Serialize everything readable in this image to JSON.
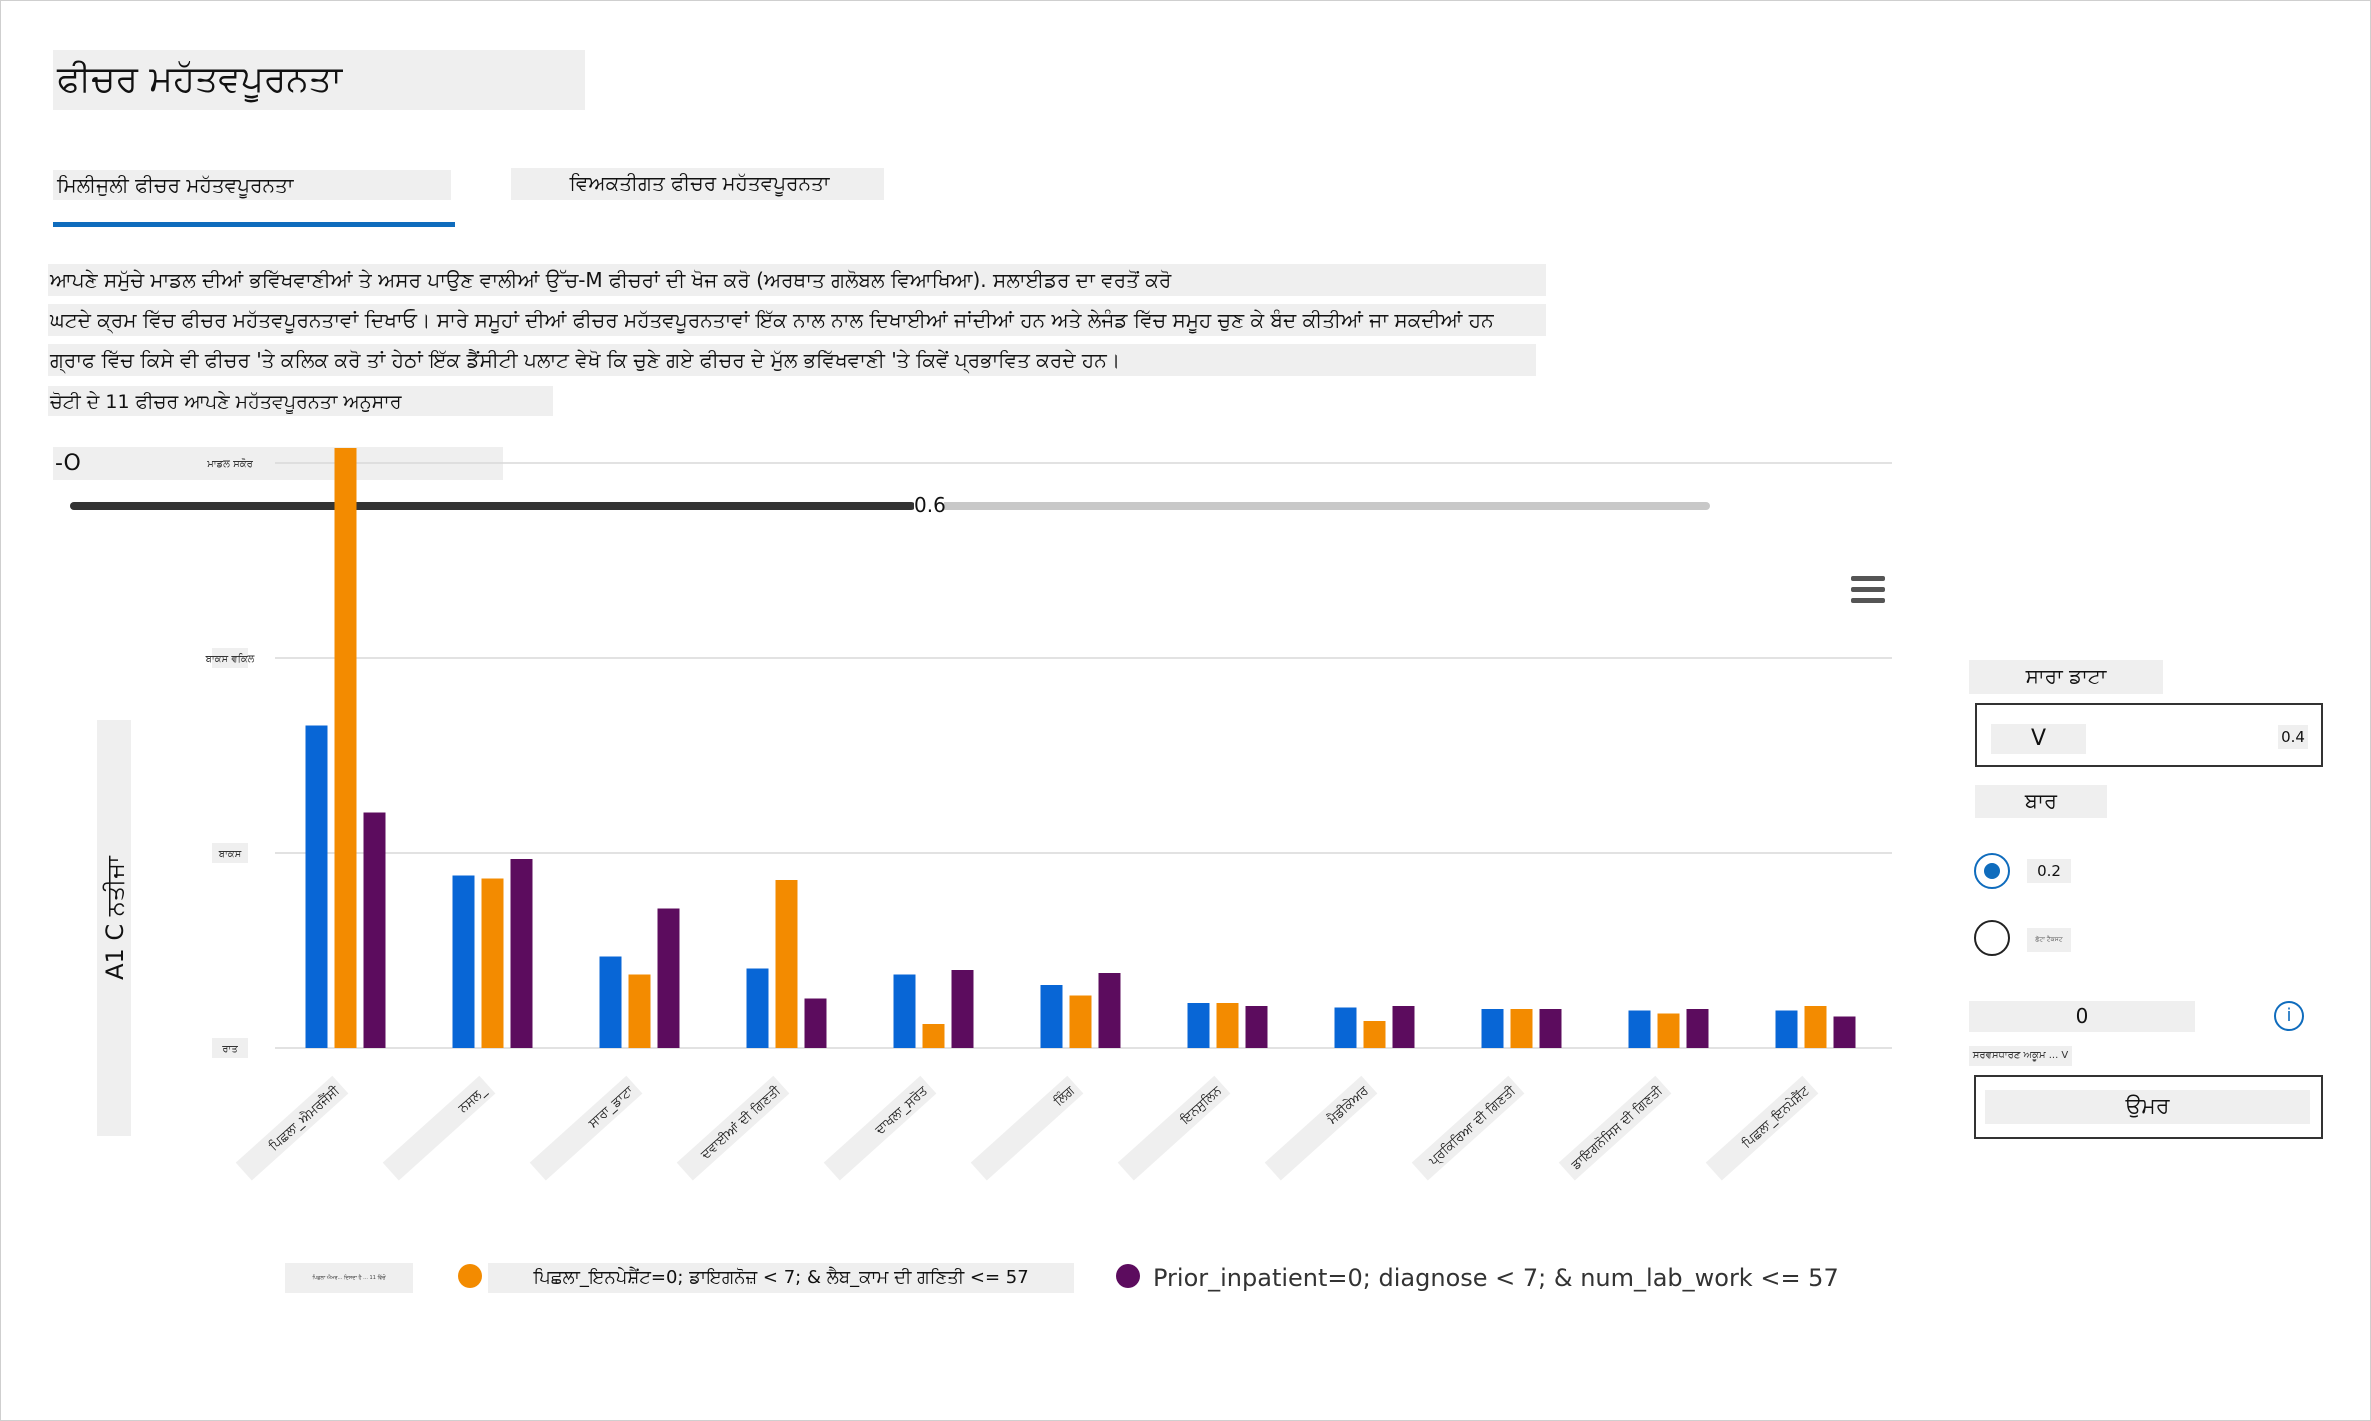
{
  "header": {
    "title": "ਫੀਚਰ ਮਹੱਤਵਪੂਰਨਤਾ"
  },
  "tabs": [
    {
      "label": "ਮਿਲੀਜੁਲੀ ਫੀਚਰ ਮਹੱਤਵਪੂਰਨਤਾ",
      "active": true
    },
    {
      "label": "ਵਿਅਕਤੀਗਤ ਫੀਚਰ ਮਹੱਤਵਪੂਰਨਤਾ",
      "active": false
    }
  ],
  "description": [
    "ਆਪਣੇ ਸਮੁੱਚੇ ਮਾਡਲ ਦੀਆਂ ਭਵਿੱਖਵਾਣੀਆਂ ਤੇ ਅਸਰ ਪਾਉਣ ਵਾਲੀਆਂ ਉੱਚ-M ਫੀਚਰਾਂ ਦੀ ਖੋਜ ਕਰੋ (ਅਰਥਾਤ ਗਲੋਬਲ ਵਿਆਖਿਆ). ਸਲਾਈਡਰ ਦਾ ਵਰਤੋਂ ਕਰੋ",
    "ਘਟਦੇ ਕ੍ਰਮ ਵਿੱਚ ਫੀਚਰ ਮਹੱਤਵਪੂਰਨਤਾਵਾਂ ਦਿਖਾਓ। ਸਾਰੇ ਸਮੂਹਾਂ ਦੀਆਂ ਫੀਚਰ ਮਹੱਤਵਪੂਰਨਤਾਵਾਂ ਇੱਕ ਨਾਲ ਨਾਲ ਦਿਖਾਈਆਂ ਜਾਂਦੀਆਂ ਹਨ ਅਤੇ ਲੇਜੰਡ ਵਿੱਚ ਸਮੂਹ ਚੁਣ ਕੇ ਬੰਦ ਕੀਤੀਆਂ ਜਾ ਸਕਦੀਆਂ ਹਨ",
    "ਗ੍ਰਾਫ ਵਿੱਚ ਕਿਸੇ ਵੀ ਫੀਚਰ 'ਤੇ ਕਲਿਕ ਕਰੋ ਤਾਂ ਹੇਠਾਂ ਇੱਕ ਡੈਂਸੀਟੀ ਪਲਾਟ ਵੇਖੋ ਕਿ ਚੁਣੇ ਗਏ ਫੀਚਰ ਦੇ ਮੁੱਲ ਭਵਿੱਖਵਾਣੀ 'ਤੇ ਕਿਵੇਂ ਪ੍ਰਭਾਵਿਤ ਕਰਦੇ ਹਨ।",
    "ਚੋਟੀ ਦੇ 11 ਫੀਚਰ ਆਪਣੇ ਮਹੱਤਵਪੂਰਨਤਾ ਅਨੁਸਾਰ"
  ],
  "filter": {
    "value": "-O"
  },
  "slider": {
    "value": "0.6",
    "fraction": 0.515
  },
  "side_panel": {
    "all_data": "ਸਾਰਾ ਡਾਟਾ",
    "dropdown_text": "V",
    "dropdown_value": "0.4",
    "bar_label": "ਬਾਰ",
    "radio1_label": "0.2",
    "radio2_label": "ਛੋਟਾ ਟੈਕਸਟ",
    "zero_value": "0",
    "info_icon": "i",
    "small_label": "ਸਰਵਸਧਾਰਣ ਅਕੂਮ ... V",
    "age_label": "ਉਮਰ"
  },
  "icons": {
    "menu": "hamburger-menu-icon",
    "info": "info-icon"
  },
  "colors": {
    "blue": "#0866d6",
    "orange": "#f38b00",
    "purple": "#5c0c5e",
    "accent": "#0f6cbd"
  },
  "chart_data": {
    "type": "bar",
    "ylabel": "A1 C ਨਤੀਜਾ",
    "yticks": [
      "ਰਾਤ",
      "ਬਾਕਸ",
      "ਬਾਕਸ ਵਕਿਲ",
      "ਮਾਡਲ ਸਕੋਰ"
    ],
    "ylim": [
      0,
      4
    ],
    "categories": [
      "ਪਿਛਲਾ_ਐਮਰਜੈਂਸੀ",
      "ਨਸਲ_",
      "ਸਾਰਾ_ਡਾਟਾ",
      "ਦਵਾਈਆਂ ਦੀ ਗਿਣਤੀ",
      "ਦਾਖਲਾ_ਸਰੋਤ",
      "ਲਿੰਗ",
      "ਇਨਸੁਲਿਨ",
      "ਮੈਡੀਕੇਅਰ",
      "ਪ੍ਰਕਿਰਿਆ ਦੀ ਗਿਣਤੀ",
      "ਡਾਇਗਨੋਸਿਸ ਦੀ ਗਿਣਤੀ",
      "ਪਿਛਲਾ_ਇਨਪੇਸ਼ੈਂਟ"
    ],
    "series": [
      {
        "name": "",
        "color": "#0866d6",
        "values": [
          2.15,
          1.15,
          0.61,
          0.53,
          0.49,
          0.42,
          0.3,
          0.27,
          0.26,
          0.25,
          0.25
        ]
      },
      {
        "name": "ਪਿਛਲਾ_ਇਨਪੇਸ਼ੈਂਟ=0; ਡਾਇਗਨੋਜ਼ < 7; & ਲੈਬ_ਕਾਮ ਦੀ ਗਣਿਤੀ <= 57",
        "color": "#f38b00",
        "values": [
          4.0,
          1.13,
          0.49,
          1.12,
          0.16,
          0.35,
          0.3,
          0.18,
          0.26,
          0.23,
          0.28
        ]
      },
      {
        "name": "Prior_inpatient=0; diagnose < 7; & num_lab_work <= 57",
        "color": "#5c0c5e",
        "values": [
          1.57,
          1.26,
          0.93,
          0.33,
          0.52,
          0.5,
          0.28,
          0.28,
          0.26,
          0.26,
          0.21
        ]
      }
    ],
    "legend_small": "ਪਿਛਲਾ ਐਮਰ... ਦਿਸਦਾ ਹੈ ... 11 ਵਿੱਚੋਂ",
    "grid": true,
    "legend_position": "bottom"
  }
}
